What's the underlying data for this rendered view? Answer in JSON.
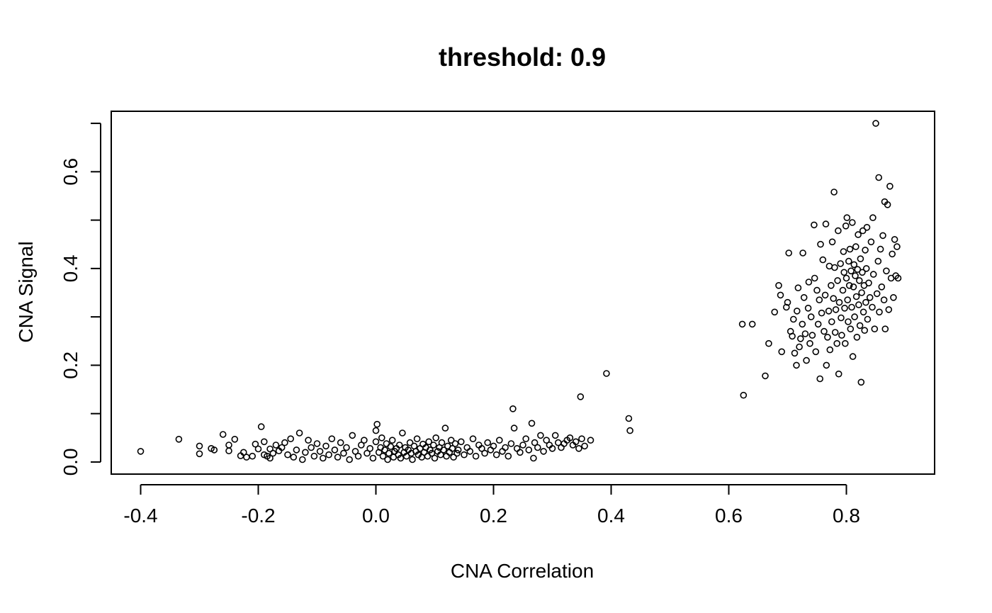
{
  "chart_data": {
    "type": "scatter",
    "title": "threshold: 0.9",
    "xlabel": "CNA Correlation",
    "ylabel": "CNA Signal",
    "xlim": [
      -0.45,
      0.95
    ],
    "ylim": [
      -0.025,
      0.725
    ],
    "xticks": [
      -0.4,
      -0.2,
      0.0,
      0.2,
      0.4,
      0.6,
      0.8
    ],
    "xtick_labels": [
      "-0.4",
      "-0.2",
      "0.0",
      "0.2",
      "0.4",
      "0.6",
      "0.8"
    ],
    "yticks": [
      0.0,
      0.1,
      0.2,
      0.3,
      0.4,
      0.5,
      0.6,
      0.7
    ],
    "ytick_labels": [
      "0.0",
      "",
      "0.2",
      "",
      "0.4",
      "",
      "0.6",
      ""
    ],
    "grid": false,
    "legend": "none",
    "marker": "open-circle",
    "series": [
      {
        "points": [
          [
            -0.4,
            0.022
          ],
          [
            -0.335,
            0.047
          ],
          [
            -0.3,
            0.033
          ],
          [
            -0.3,
            0.017
          ],
          [
            -0.28,
            0.028
          ],
          [
            -0.275,
            0.025
          ],
          [
            -0.26,
            0.057
          ],
          [
            -0.25,
            0.035
          ],
          [
            -0.25,
            0.023
          ],
          [
            -0.24,
            0.047
          ],
          [
            -0.23,
            0.013
          ],
          [
            -0.225,
            0.02
          ],
          [
            -0.22,
            0.01
          ],
          [
            -0.21,
            0.012
          ],
          [
            -0.205,
            0.037
          ],
          [
            -0.2,
            0.027
          ],
          [
            -0.195,
            0.073
          ],
          [
            -0.19,
            0.015
          ],
          [
            -0.19,
            0.042
          ],
          [
            -0.185,
            0.012
          ],
          [
            -0.18,
            0.008
          ],
          [
            -0.18,
            0.027
          ],
          [
            -0.175,
            0.018
          ],
          [
            -0.17,
            0.035
          ],
          [
            -0.165,
            0.023
          ],
          [
            -0.16,
            0.03
          ],
          [
            -0.155,
            0.04
          ],
          [
            -0.15,
            0.015
          ],
          [
            -0.145,
            0.048
          ],
          [
            -0.14,
            0.01
          ],
          [
            -0.135,
            0.025
          ],
          [
            -0.13,
            0.06
          ],
          [
            -0.125,
            0.005
          ],
          [
            -0.12,
            0.02
          ],
          [
            -0.115,
            0.045
          ],
          [
            -0.11,
            0.03
          ],
          [
            -0.105,
            0.012
          ],
          [
            -0.1,
            0.038
          ],
          [
            -0.095,
            0.022
          ],
          [
            -0.09,
            0.008
          ],
          [
            -0.085,
            0.033
          ],
          [
            -0.08,
            0.015
          ],
          [
            -0.075,
            0.048
          ],
          [
            -0.07,
            0.025
          ],
          [
            -0.065,
            0.01
          ],
          [
            -0.06,
            0.04
          ],
          [
            -0.055,
            0.018
          ],
          [
            -0.05,
            0.03
          ],
          [
            -0.045,
            0.005
          ],
          [
            -0.04,
            0.055
          ],
          [
            -0.035,
            0.022
          ],
          [
            -0.03,
            0.012
          ],
          [
            -0.025,
            0.035
          ],
          [
            -0.02,
            0.045
          ],
          [
            -0.015,
            0.018
          ],
          [
            -0.01,
            0.028
          ],
          [
            -0.005,
            0.008
          ],
          [
            0.0,
            0.042
          ],
          [
            0.0,
            0.065
          ],
          [
            0.002,
            0.078
          ],
          [
            0.005,
            0.02
          ],
          [
            0.008,
            0.03
          ],
          [
            0.01,
            0.05
          ],
          [
            0.012,
            0.012
          ],
          [
            0.015,
            0.025
          ],
          [
            0.018,
            0.038
          ],
          [
            0.02,
            0.005
          ],
          [
            0.022,
            0.018
          ],
          [
            0.025,
            0.032
          ],
          [
            0.028,
            0.045
          ],
          [
            0.03,
            0.01
          ],
          [
            0.032,
            0.022
          ],
          [
            0.035,
            0.028
          ],
          [
            0.038,
            0.015
          ],
          [
            0.04,
            0.035
          ],
          [
            0.042,
            0.008
          ],
          [
            0.045,
            0.06
          ],
          [
            0.048,
            0.02
          ],
          [
            0.05,
            0.03
          ],
          [
            0.052,
            0.012
          ],
          [
            0.055,
            0.025
          ],
          [
            0.058,
            0.04
          ],
          [
            0.06,
            0.018
          ],
          [
            0.062,
            0.005
          ],
          [
            0.065,
            0.033
          ],
          [
            0.068,
            0.022
          ],
          [
            0.07,
            0.048
          ],
          [
            0.072,
            0.015
          ],
          [
            0.075,
            0.028
          ],
          [
            0.078,
            0.01
          ],
          [
            0.08,
            0.037
          ],
          [
            0.082,
            0.02
          ],
          [
            0.085,
            0.03
          ],
          [
            0.088,
            0.012
          ],
          [
            0.09,
            0.042
          ],
          [
            0.092,
            0.025
          ],
          [
            0.095,
            0.018
          ],
          [
            0.098,
            0.035
          ],
          [
            0.1,
            0.008
          ],
          [
            0.102,
            0.05
          ],
          [
            0.105,
            0.022
          ],
          [
            0.108,
            0.03
          ],
          [
            0.11,
            0.015
          ],
          [
            0.112,
            0.04
          ],
          [
            0.115,
            0.025
          ],
          [
            0.118,
            0.07
          ],
          [
            0.12,
            0.012
          ],
          [
            0.122,
            0.033
          ],
          [
            0.125,
            0.02
          ],
          [
            0.128,
            0.045
          ],
          [
            0.13,
            0.028
          ],
          [
            0.132,
            0.01
          ],
          [
            0.135,
            0.038
          ],
          [
            0.138,
            0.018
          ],
          [
            0.14,
            0.025
          ],
          [
            0.145,
            0.042
          ],
          [
            0.15,
            0.015
          ],
          [
            0.155,
            0.03
          ],
          [
            0.16,
            0.022
          ],
          [
            0.165,
            0.048
          ],
          [
            0.17,
            0.012
          ],
          [
            0.175,
            0.035
          ],
          [
            0.18,
            0.028
          ],
          [
            0.185,
            0.018
          ],
          [
            0.19,
            0.04
          ],
          [
            0.195,
            0.025
          ],
          [
            0.2,
            0.033
          ],
          [
            0.205,
            0.015
          ],
          [
            0.21,
            0.045
          ],
          [
            0.215,
            0.022
          ],
          [
            0.22,
            0.03
          ],
          [
            0.225,
            0.012
          ],
          [
            0.23,
            0.038
          ],
          [
            0.233,
            0.11
          ],
          [
            0.235,
            0.07
          ],
          [
            0.24,
            0.028
          ],
          [
            0.245,
            0.02
          ],
          [
            0.25,
            0.035
          ],
          [
            0.255,
            0.048
          ],
          [
            0.26,
            0.025
          ],
          [
            0.265,
            0.08
          ],
          [
            0.268,
            0.008
          ],
          [
            0.27,
            0.04
          ],
          [
            0.275,
            0.03
          ],
          [
            0.28,
            0.055
          ],
          [
            0.285,
            0.022
          ],
          [
            0.29,
            0.045
          ],
          [
            0.295,
            0.035
          ],
          [
            0.3,
            0.028
          ],
          [
            0.305,
            0.055
          ],
          [
            0.31,
            0.04
          ],
          [
            0.315,
            0.03
          ],
          [
            0.32,
            0.038
          ],
          [
            0.325,
            0.045
          ],
          [
            0.33,
            0.05
          ],
          [
            0.335,
            0.035
          ],
          [
            0.34,
            0.042
          ],
          [
            0.345,
            0.028
          ],
          [
            0.348,
            0.135
          ],
          [
            0.35,
            0.048
          ],
          [
            0.355,
            0.033
          ],
          [
            0.365,
            0.045
          ],
          [
            0.392,
            0.183
          ],
          [
            0.43,
            0.09
          ],
          [
            0.432,
            0.065
          ],
          [
            0.623,
            0.285
          ],
          [
            0.625,
            0.138
          ],
          [
            0.64,
            0.285
          ],
          [
            0.662,
            0.178
          ],
          [
            0.668,
            0.245
          ],
          [
            0.678,
            0.31
          ],
          [
            0.685,
            0.365
          ],
          [
            0.688,
            0.345
          ],
          [
            0.69,
            0.228
          ],
          [
            0.698,
            0.32
          ],
          [
            0.7,
            0.33
          ],
          [
            0.702,
            0.432
          ],
          [
            0.705,
            0.27
          ],
          [
            0.708,
            0.26
          ],
          [
            0.71,
            0.295
          ],
          [
            0.712,
            0.225
          ],
          [
            0.715,
            0.2
          ],
          [
            0.716,
            0.312
          ],
          [
            0.718,
            0.36
          ],
          [
            0.72,
            0.238
          ],
          [
            0.722,
            0.255
          ],
          [
            0.725,
            0.285
          ],
          [
            0.726,
            0.432
          ],
          [
            0.728,
            0.34
          ],
          [
            0.73,
            0.265
          ],
          [
            0.732,
            0.21
          ],
          [
            0.735,
            0.318
          ],
          [
            0.736,
            0.372
          ],
          [
            0.738,
            0.245
          ],
          [
            0.74,
            0.3
          ],
          [
            0.742,
            0.262
          ],
          [
            0.745,
            0.49
          ],
          [
            0.746,
            0.38
          ],
          [
            0.748,
            0.228
          ],
          [
            0.75,
            0.355
          ],
          [
            0.752,
            0.285
          ],
          [
            0.754,
            0.335
          ],
          [
            0.755,
            0.172
          ],
          [
            0.756,
            0.45
          ],
          [
            0.758,
            0.308
          ],
          [
            0.76,
            0.418
          ],
          [
            0.762,
            0.27
          ],
          [
            0.764,
            0.345
          ],
          [
            0.765,
            0.492
          ],
          [
            0.766,
            0.2
          ],
          [
            0.768,
            0.258
          ],
          [
            0.77,
            0.312
          ],
          [
            0.771,
            0.405
          ],
          [
            0.772,
            0.232
          ],
          [
            0.774,
            0.365
          ],
          [
            0.775,
            0.29
          ],
          [
            0.776,
            0.455
          ],
          [
            0.778,
            0.338
          ],
          [
            0.779,
            0.558
          ],
          [
            0.78,
            0.402
          ],
          [
            0.781,
            0.268
          ],
          [
            0.782,
            0.315
          ],
          [
            0.784,
            0.245
          ],
          [
            0.785,
            0.375
          ],
          [
            0.786,
            0.478
          ],
          [
            0.787,
            0.182
          ],
          [
            0.788,
            0.33
          ],
          [
            0.79,
            0.41
          ],
          [
            0.791,
            0.298
          ],
          [
            0.792,
            0.262
          ],
          [
            0.794,
            0.355
          ],
          [
            0.795,
            0.435
          ],
          [
            0.796,
            0.392
          ],
          [
            0.797,
            0.318
          ],
          [
            0.798,
            0.245
          ],
          [
            0.799,
            0.488
          ],
          [
            0.8,
            0.38
          ],
          [
            0.801,
            0.505
          ],
          [
            0.802,
            0.335
          ],
          [
            0.803,
            0.29
          ],
          [
            0.804,
            0.415
          ],
          [
            0.805,
            0.365
          ],
          [
            0.806,
            0.44
          ],
          [
            0.807,
            0.275
          ],
          [
            0.808,
            0.395
          ],
          [
            0.809,
            0.32
          ],
          [
            0.81,
            0.495
          ],
          [
            0.811,
            0.218
          ],
          [
            0.812,
            0.362
          ],
          [
            0.813,
            0.408
          ],
          [
            0.814,
            0.3
          ],
          [
            0.815,
            0.385
          ],
          [
            0.816,
            0.445
          ],
          [
            0.817,
            0.342
          ],
          [
            0.818,
            0.258
          ],
          [
            0.819,
            0.398
          ],
          [
            0.82,
            0.47
          ],
          [
            0.821,
            0.325
          ],
          [
            0.822,
            0.375
          ],
          [
            0.823,
            0.282
          ],
          [
            0.824,
            0.42
          ],
          [
            0.825,
            0.165
          ],
          [
            0.826,
            0.35
          ],
          [
            0.827,
            0.392
          ],
          [
            0.828,
            0.478
          ],
          [
            0.829,
            0.31
          ],
          [
            0.83,
            0.365
          ],
          [
            0.831,
            0.272
          ],
          [
            0.832,
            0.438
          ],
          [
            0.833,
            0.33
          ],
          [
            0.834,
            0.4
          ],
          [
            0.835,
            0.485
          ],
          [
            0.836,
            0.295
          ],
          [
            0.838,
            0.37
          ],
          [
            0.84,
            0.34
          ],
          [
            0.842,
            0.455
          ],
          [
            0.844,
            0.32
          ],
          [
            0.845,
            0.505
          ],
          [
            0.846,
            0.388
          ],
          [
            0.848,
            0.275
          ],
          [
            0.85,
            0.7
          ],
          [
            0.852,
            0.348
          ],
          [
            0.854,
            0.415
          ],
          [
            0.855,
            0.588
          ],
          [
            0.856,
            0.31
          ],
          [
            0.858,
            0.44
          ],
          [
            0.86,
            0.362
          ],
          [
            0.862,
            0.468
          ],
          [
            0.864,
            0.335
          ],
          [
            0.865,
            0.538
          ],
          [
            0.866,
            0.275
          ],
          [
            0.868,
            0.395
          ],
          [
            0.87,
            0.532
          ],
          [
            0.872,
            0.315
          ],
          [
            0.874,
            0.57
          ],
          [
            0.876,
            0.38
          ],
          [
            0.878,
            0.43
          ],
          [
            0.88,
            0.34
          ],
          [
            0.882,
            0.46
          ],
          [
            0.884,
            0.385
          ],
          [
            0.886,
            0.445
          ],
          [
            0.888,
            0.38
          ]
        ]
      }
    ]
  }
}
